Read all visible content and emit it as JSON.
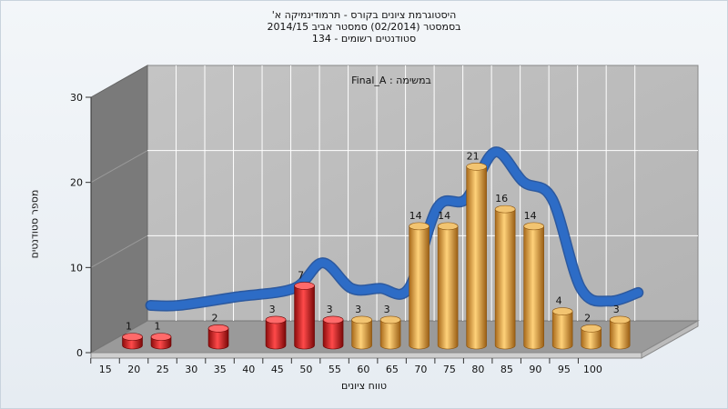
{
  "title": {
    "line1": "היסטוגרמת ציונים בקורס - תרמודינמיקה א'",
    "line2": "בסמסטר  (02/2014)  סמסטר אביב 2014/15",
    "line3": "סטודנטים רשומים - 134"
  },
  "annotation": "Final_A : במשימה",
  "colors": {
    "fail": "#d21a1a",
    "pass": "#e8a23a",
    "curve": "#2d6cc6",
    "wall": "#bdbdbd",
    "side_wall": "#7a7a7a",
    "floor": "#9a9a9a"
  },
  "chart_data": {
    "type": "bar",
    "title": "היסטוגרמת ציונים בקורס - תרמודינמיקה א'",
    "xlabel": "טווח ציונים",
    "ylabel": "מספר סטודנטים",
    "ylim": [
      0,
      30
    ],
    "y_ticks": [
      0,
      10,
      20,
      30
    ],
    "x_ticks": [
      15,
      20,
      25,
      30,
      35,
      40,
      45,
      50,
      55,
      60,
      65,
      70,
      75,
      80,
      85,
      90,
      95,
      100
    ],
    "grid": true,
    "series": [
      {
        "points": [
          {
            "x": 17.5,
            "value": 1,
            "status": "fail"
          },
          {
            "x": 22.5,
            "value": 1,
            "status": "fail"
          },
          {
            "x": 32.5,
            "value": 2,
            "status": "fail"
          },
          {
            "x": 42.5,
            "value": 3,
            "status": "fail"
          },
          {
            "x": 47.5,
            "value": 7,
            "status": "fail"
          },
          {
            "x": 52.5,
            "value": 3,
            "status": "fail"
          },
          {
            "x": 57.5,
            "value": 3,
            "status": "pass"
          },
          {
            "x": 62.5,
            "value": 3,
            "status": "pass"
          },
          {
            "x": 67.5,
            "value": 14,
            "status": "pass"
          },
          {
            "x": 72.5,
            "value": 14,
            "status": "pass"
          },
          {
            "x": 77.5,
            "value": 21,
            "status": "pass"
          },
          {
            "x": 82.5,
            "value": 16,
            "status": "pass"
          },
          {
            "x": 87.5,
            "value": 14,
            "status": "pass"
          },
          {
            "x": 92.5,
            "value": 4,
            "status": "pass"
          },
          {
            "x": 97.5,
            "value": 2,
            "status": "pass"
          },
          {
            "x": 102.5,
            "value": 3,
            "status": "pass"
          }
        ]
      }
    ],
    "curve": [
      {
        "x": 17.5,
        "y": 3.5
      },
      {
        "x": 22.5,
        "y": 3.5
      },
      {
        "x": 32.5,
        "y": 4.5
      },
      {
        "x": 42.5,
        "y": 5.5
      },
      {
        "x": 47.5,
        "y": 8.5
      },
      {
        "x": 52.5,
        "y": 5.5
      },
      {
        "x": 57.5,
        "y": 5.5
      },
      {
        "x": 62.5,
        "y": 5.5
      },
      {
        "x": 67.5,
        "y": 15
      },
      {
        "x": 72.5,
        "y": 16
      },
      {
        "x": 77.5,
        "y": 21.5
      },
      {
        "x": 82.5,
        "y": 18
      },
      {
        "x": 87.5,
        "y": 16
      },
      {
        "x": 92.5,
        "y": 5.5
      },
      {
        "x": 97.5,
        "y": 4
      },
      {
        "x": 102.5,
        "y": 5
      }
    ]
  }
}
